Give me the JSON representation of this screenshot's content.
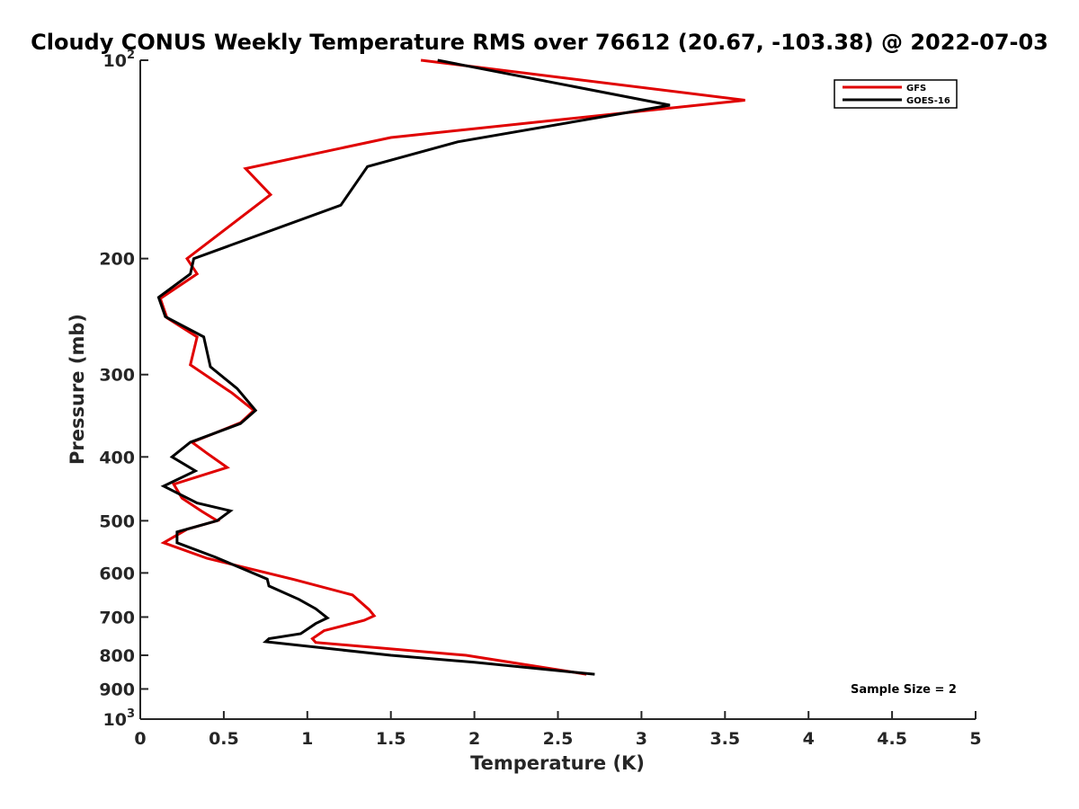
{
  "chart_data": {
    "type": "line",
    "title": "Cloudy CONUS Weekly Temperature RMS over 76612 (20.67, -103.38) @ 2022-07-03",
    "xlabel": "Temperature (K)",
    "ylabel": "Pressure (mb)",
    "xlim": [
      0,
      5
    ],
    "ylim": [
      100,
      1000
    ],
    "yscale": "log",
    "y_reversed": true,
    "grid": false,
    "legend_position": "top-right",
    "x_ticks": [
      "0",
      "0.5",
      "1",
      "1.5",
      "2",
      "2.5",
      "3",
      "3.5",
      "4",
      "4.5",
      "5"
    ],
    "y_ticks": [
      {
        "value": 100,
        "base": "10",
        "exp": "2"
      },
      {
        "value": 200,
        "label": "200"
      },
      {
        "value": 300,
        "label": "300"
      },
      {
        "value": 400,
        "label": "400"
      },
      {
        "value": 500,
        "label": "500"
      },
      {
        "value": 600,
        "label": "600"
      },
      {
        "value": 700,
        "label": "700"
      },
      {
        "value": 800,
        "label": "800"
      },
      {
        "value": 900,
        "label": "900"
      },
      {
        "value": 1000,
        "base": "10",
        "exp": "3"
      }
    ],
    "annotation": "Sample Size = 2",
    "series": [
      {
        "name": "GFS",
        "color": "#e00000",
        "points": [
          [
            1.68,
            100
          ],
          [
            3.62,
            115
          ],
          [
            1.5,
            131
          ],
          [
            0.63,
            146
          ],
          [
            0.78,
            160
          ],
          [
            0.28,
            200
          ],
          [
            0.34,
            211
          ],
          [
            0.12,
            230
          ],
          [
            0.16,
            246
          ],
          [
            0.34,
            263
          ],
          [
            0.3,
            290
          ],
          [
            0.55,
            320
          ],
          [
            0.68,
            340
          ],
          [
            0.6,
            355
          ],
          [
            0.31,
            380
          ],
          [
            0.4,
            395
          ],
          [
            0.52,
            415
          ],
          [
            0.2,
            440
          ],
          [
            0.25,
            462
          ],
          [
            0.37,
            484
          ],
          [
            0.46,
            500
          ],
          [
            0.28,
            515
          ],
          [
            0.14,
            540
          ],
          [
            0.4,
            570
          ],
          [
            0.92,
            614
          ],
          [
            1.27,
            648
          ],
          [
            1.37,
            682
          ],
          [
            1.4,
            697
          ],
          [
            1.34,
            708
          ],
          [
            1.1,
            734
          ],
          [
            1.03,
            755
          ],
          [
            1.05,
            765
          ],
          [
            1.95,
            800
          ],
          [
            2.67,
            855
          ]
        ]
      },
      {
        "name": "GOES-16",
        "color": "#000000",
        "points": [
          [
            1.78,
            100
          ],
          [
            3.17,
            117
          ],
          [
            1.9,
            133
          ],
          [
            1.36,
            145
          ],
          [
            1.2,
            166
          ],
          [
            0.32,
            200
          ],
          [
            0.3,
            211
          ],
          [
            0.11,
            229
          ],
          [
            0.15,
            245
          ],
          [
            0.38,
            263
          ],
          [
            0.42,
            292
          ],
          [
            0.58,
            315
          ],
          [
            0.69,
            340
          ],
          [
            0.6,
            356
          ],
          [
            0.3,
            380
          ],
          [
            0.19,
            400
          ],
          [
            0.33,
            420
          ],
          [
            0.14,
            443
          ],
          [
            0.34,
            470
          ],
          [
            0.54,
            483
          ],
          [
            0.46,
            500
          ],
          [
            0.22,
            520
          ],
          [
            0.22,
            540
          ],
          [
            0.45,
            568
          ],
          [
            0.76,
            613
          ],
          [
            0.77,
            628
          ],
          [
            0.95,
            658
          ],
          [
            1.05,
            680
          ],
          [
            1.12,
            702
          ],
          [
            1.05,
            716
          ],
          [
            0.96,
            742
          ],
          [
            0.77,
            755
          ],
          [
            0.75,
            763
          ],
          [
            1.5,
            800
          ],
          [
            2.0,
            820
          ],
          [
            2.72,
            855
          ]
        ]
      }
    ]
  }
}
